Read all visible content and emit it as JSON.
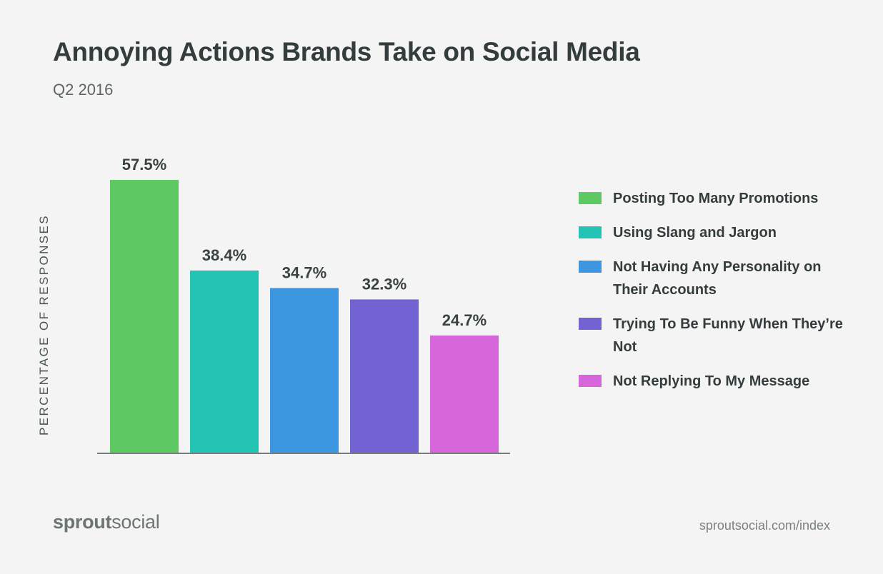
{
  "chart_data": {
    "type": "bar",
    "title": "Annoying Actions Brands Take on Social Media",
    "subtitle": "Q2 2016",
    "ylabel": "PERCENTAGE OF RESPONSES",
    "ylim": [
      0,
      57.5
    ],
    "grid": false,
    "legend_position": "right",
    "categories": [
      "Posting Too Many Promotions",
      "Using Slang and Jargon",
      "Not Having Any Personality on Their Accounts",
      "Trying To Be Funny When They’re Not",
      "Not Replying To My Message"
    ],
    "values": [
      57.5,
      38.4,
      34.7,
      32.3,
      24.7
    ],
    "value_labels": [
      "57.5%",
      "38.4%",
      "34.7%",
      "32.3%",
      "24.7%"
    ],
    "colors": [
      "#5ec962",
      "#23c4b4",
      "#3d97e0",
      "#7163d1",
      "#d766db"
    ]
  },
  "footer": {
    "brand_bold": "sprout",
    "brand_light": "social",
    "source": "sproutsocial.com/index"
  }
}
